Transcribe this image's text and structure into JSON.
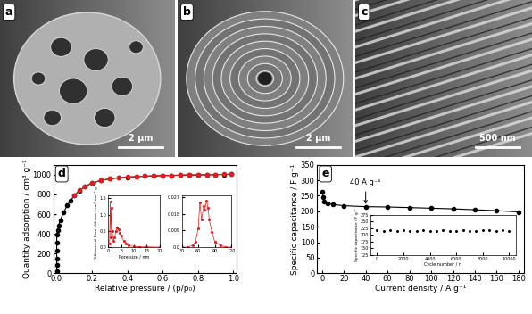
{
  "images": [
    {
      "label": "a",
      "scale_bar": "2 μm"
    },
    {
      "label": "b",
      "scale_bar": "2 μm"
    },
    {
      "label": "c",
      "scale_bar": "500 nm"
    }
  ],
  "chart_data": [
    {
      "type": "line",
      "label": "d",
      "x_label": "Relative pressure / (p/p₀)",
      "y_label": "Quantity adsorption / cm³ g⁻¹",
      "xlim": [
        -0.02,
        1.02
      ],
      "xticks": [
        0.0,
        0.2,
        0.4,
        0.6,
        0.8,
        1.0
      ],
      "ylim": [
        0,
        1100
      ],
      "yticks": [
        0,
        200,
        400,
        600,
        800,
        1000
      ],
      "series": [
        {
          "color": "#000000",
          "marker": "o",
          "line_style": "solid",
          "x": [
            0.0,
            0.0,
            0.0,
            0.0,
            0.0,
            0.0,
            0.005,
            0.01,
            0.02,
            0.04,
            0.06,
            0.08,
            0.1,
            0.13,
            0.16,
            0.2,
            0.25,
            0.3,
            0.35,
            0.4,
            0.45,
            0.5,
            0.55,
            0.6,
            0.65,
            0.7,
            0.75,
            0.8,
            0.85,
            0.9,
            0.95,
            0.99
          ],
          "values": [
            20,
            80,
            150,
            230,
            310,
            390,
            440,
            480,
            540,
            620,
            690,
            740,
            790,
            840,
            880,
            915,
            940,
            958,
            968,
            975,
            981,
            985,
            988,
            991,
            993,
            995,
            997,
            998,
            1000,
            1001,
            1003,
            1005
          ]
        },
        {
          "color": "#e41a1c",
          "marker": "o",
          "line_style": "solid",
          "x": [
            0.99,
            0.95,
            0.9,
            0.85,
            0.8,
            0.75,
            0.7,
            0.65,
            0.6,
            0.55,
            0.5,
            0.45,
            0.4,
            0.35,
            0.3,
            0.25,
            0.2,
            0.16,
            0.13,
            0.1
          ],
          "values": [
            1005,
            1004,
            1002,
            1001,
            999,
            998,
            996,
            994,
            992,
            989,
            986,
            982,
            976,
            969,
            959,
            942,
            917,
            882,
            842,
            792
          ]
        }
      ],
      "inset": [
        {
          "type": "line",
          "x_label": "Pore size / nm",
          "y_label": "Differential Pore Volume / cm³ nm⁻¹ g⁻¹",
          "xlim": [
            0,
            20
          ],
          "xticks": [
            0,
            5,
            10,
            15,
            20
          ],
          "ylim": [
            0,
            1.6
          ],
          "yticks": [
            0.0,
            0.5,
            1.0,
            1.5
          ],
          "series": [
            {
              "color": "#e41a1c",
              "marker": "o",
              "line_style": "solid",
              "x": [
                0.5,
                0.8,
                1.0,
                1.2,
                1.5,
                2.0,
                2.5,
                3.0,
                3.5,
                4.0,
                4.5,
                5.0,
                6.0,
                7.0,
                8.0,
                10.0,
                12.0,
                15.0,
                20.0
              ],
              "values": [
                0.1,
                1.4,
                0.3,
                1.2,
                0.5,
                0.2,
                0.3,
                0.5,
                0.6,
                0.55,
                0.45,
                0.35,
                0.2,
                0.1,
                0.05,
                0.02,
                0.01,
                0.01,
                0.0
              ]
            }
          ]
        },
        {
          "type": "line",
          "xlim": [
            30,
            120
          ],
          "xticks": [
            30,
            60,
            90,
            120
          ],
          "ylim": [
            0,
            0.028
          ],
          "yticks": [
            0.0,
            0.009,
            0.018,
            0.027
          ],
          "series": [
            {
              "color": "#e41a1c",
              "marker": "o",
              "line_style": "solid",
              "x": [
                30,
                40,
                50,
                55,
                60,
                63,
                66,
                70,
                72,
                75,
                78,
                80,
                85,
                90,
                100,
                110,
                120
              ],
              "values": [
                0.0,
                0.0,
                0.001,
                0.003,
                0.01,
                0.024,
                0.015,
                0.022,
                0.02,
                0.025,
                0.021,
                0.015,
                0.008,
                0.003,
                0.001,
                0.0,
                0.0
              ]
            }
          ]
        }
      ]
    },
    {
      "type": "line",
      "label": "e",
      "x_label": "Current density / A g⁻¹",
      "y_label": "Specific capacitance / F g⁻¹",
      "xlim": [
        -5,
        185
      ],
      "xticks": [
        0,
        20,
        40,
        60,
        80,
        100,
        120,
        140,
        160,
        180
      ],
      "ylim": [
        0,
        350
      ],
      "yticks": [
        0,
        50,
        100,
        150,
        200,
        250,
        300,
        350
      ],
      "series": [
        {
          "color": "#000000",
          "marker": "o",
          "line_style": "solid",
          "x": [
            0.5,
            1,
            2,
            5,
            10,
            20,
            40,
            60,
            80,
            100,
            120,
            140,
            160,
            180
          ],
          "values": [
            262,
            245,
            232,
            226,
            222,
            218,
            215,
            214,
            212,
            210,
            208,
            205,
            202,
            198
          ]
        }
      ],
      "annotations": [
        {
          "text": "40 A g⁻¹",
          "x": 40,
          "y": 215
        }
      ],
      "inset": [
        {
          "type": "line",
          "x_label": "Cycle number / n",
          "y_label": "Specific capacitance / F g⁻¹",
          "xlim": [
            -500,
            10500
          ],
          "xticks": [
            0,
            2000,
            4000,
            6000,
            8000,
            10000
          ],
          "ylim": [
            125,
            275
          ],
          "yticks": [
            125,
            150,
            175,
            200,
            225,
            250,
            275
          ],
          "series": [
            {
              "color": "#000000",
              "marker": "o",
              "line_style": "none",
              "x": [
                0,
                500,
                1000,
                1500,
                2000,
                2500,
                3000,
                3500,
                4000,
                4500,
                5000,
                5500,
                6000,
                6500,
                7000,
                7500,
                8000,
                8500,
                9000,
                9500,
                10000
              ],
              "values": [
                216,
                215,
                217,
                214,
                216,
                215,
                215,
                216,
                214,
                215,
                216,
                215,
                214,
                216,
                215,
                214,
                217,
                218,
                215,
                216,
                215
              ]
            }
          ]
        }
      ]
    }
  ]
}
